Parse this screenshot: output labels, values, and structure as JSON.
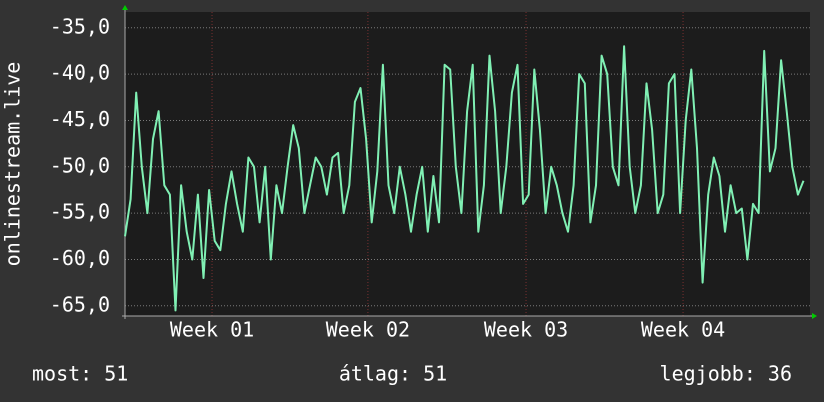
{
  "chart_data": {
    "type": "line",
    "ylabel": "onlinestream.live",
    "x": [
      0,
      0.25,
      0.5,
      0.75,
      1,
      1.25,
      1.5,
      1.75,
      2,
      2.25,
      2.5,
      2.75,
      3,
      3.25,
      3.5,
      3.75,
      4,
      4.25,
      4.5,
      4.75,
      5,
      5.25,
      5.5,
      5.75,
      6,
      6.25,
      6.5,
      6.75,
      7,
      7.25,
      7.5,
      7.75,
      8,
      8.25,
      8.5,
      8.75,
      9,
      9.25,
      9.5,
      9.75,
      10,
      10.25,
      10.5,
      10.75,
      11,
      11.25,
      11.5,
      11.75,
      12,
      12.25,
      12.5,
      12.75,
      13,
      13.25,
      13.5,
      13.75,
      14,
      14.25,
      14.5,
      14.75,
      15,
      15.25,
      15.5,
      15.75,
      16,
      16.25,
      16.5,
      16.75,
      17,
      17.25,
      17.5,
      17.75,
      18,
      18.25,
      18.5,
      18.75,
      19,
      19.25,
      19.5,
      19.75,
      20,
      20.25,
      20.5,
      20.75,
      21,
      21.25,
      21.5,
      21.75,
      22,
      22.25,
      22.5,
      22.75,
      23,
      23.25,
      23.5,
      23.75,
      24,
      24.25,
      24.5,
      24.75,
      25,
      25.25,
      25.5,
      25.75,
      26,
      26.25,
      26.5,
      26.75,
      27,
      27.25,
      27.5,
      27.75,
      28,
      28.25,
      28.5,
      28.75,
      29,
      29.25,
      29.5,
      29.75,
      30,
      30.25
    ],
    "series": [
      {
        "color": "#80f0b4",
        "values": [
          -57.5,
          -53.5,
          -42,
          -50,
          -55,
          -47,
          -44,
          -52,
          -53,
          -65.5,
          -52,
          -57,
          -60,
          -53,
          -62,
          -52.5,
          -58,
          -59,
          -54,
          -50.5,
          -54,
          -57,
          -49,
          -50,
          -56,
          -50,
          -60,
          -52,
          -55,
          -50,
          -45.5,
          -48,
          -55,
          -52,
          -49,
          -50,
          -53,
          -49,
          -48.5,
          -55,
          -52,
          -43,
          -41.5,
          -47,
          -56,
          -50.5,
          -39,
          -52,
          -55,
          -50,
          -53,
          -57,
          -53,
          -50,
          -57,
          -51,
          -56,
          -39,
          -39.5,
          -50,
          -55,
          -44,
          -39,
          -57,
          -52,
          -38,
          -44,
          -55,
          -50,
          -42,
          -39,
          -54,
          -53,
          -39.5,
          -46,
          -55,
          -50,
          -52,
          -55,
          -57,
          -52,
          -40,
          -41,
          -56,
          -52,
          -38,
          -40,
          -50,
          -52,
          -37,
          -50,
          -55,
          -52,
          -41,
          -46,
          -55,
          -53,
          -41,
          -40,
          -55,
          -45,
          -39.5,
          -48,
          -62.5,
          -53,
          -49,
          -51,
          -57,
          -52,
          -55,
          -54.5,
          -60,
          -54,
          -55,
          -37.5,
          -50.5,
          -48,
          -38.5,
          -44,
          -50,
          -53,
          -51.5
        ]
      }
    ],
    "xlim": [
      0,
      30.54
    ],
    "xticks": [
      {
        "value": 3.88,
        "label": "Week 01"
      },
      {
        "value": 10.83,
        "label": "Week 02"
      },
      {
        "value": 17.88,
        "label": "Week 03"
      },
      {
        "value": 24.88,
        "label": "Week 04"
      }
    ],
    "ylim": [
      -66.1,
      -33.3
    ],
    "yticks": [
      {
        "value": -35,
        "label": "-35,0"
      },
      {
        "value": -40,
        "label": "-40,0"
      },
      {
        "value": -45,
        "label": "-45,0"
      },
      {
        "value": -50,
        "label": "-50,0"
      },
      {
        "value": -55,
        "label": "-55,0"
      },
      {
        "value": -60,
        "label": "-60,0"
      },
      {
        "value": -65,
        "label": "-65,0"
      }
    ],
    "grid": true,
    "footer": [
      "most: 51",
      "átlag: 51",
      "legjobb: 36"
    ]
  }
}
